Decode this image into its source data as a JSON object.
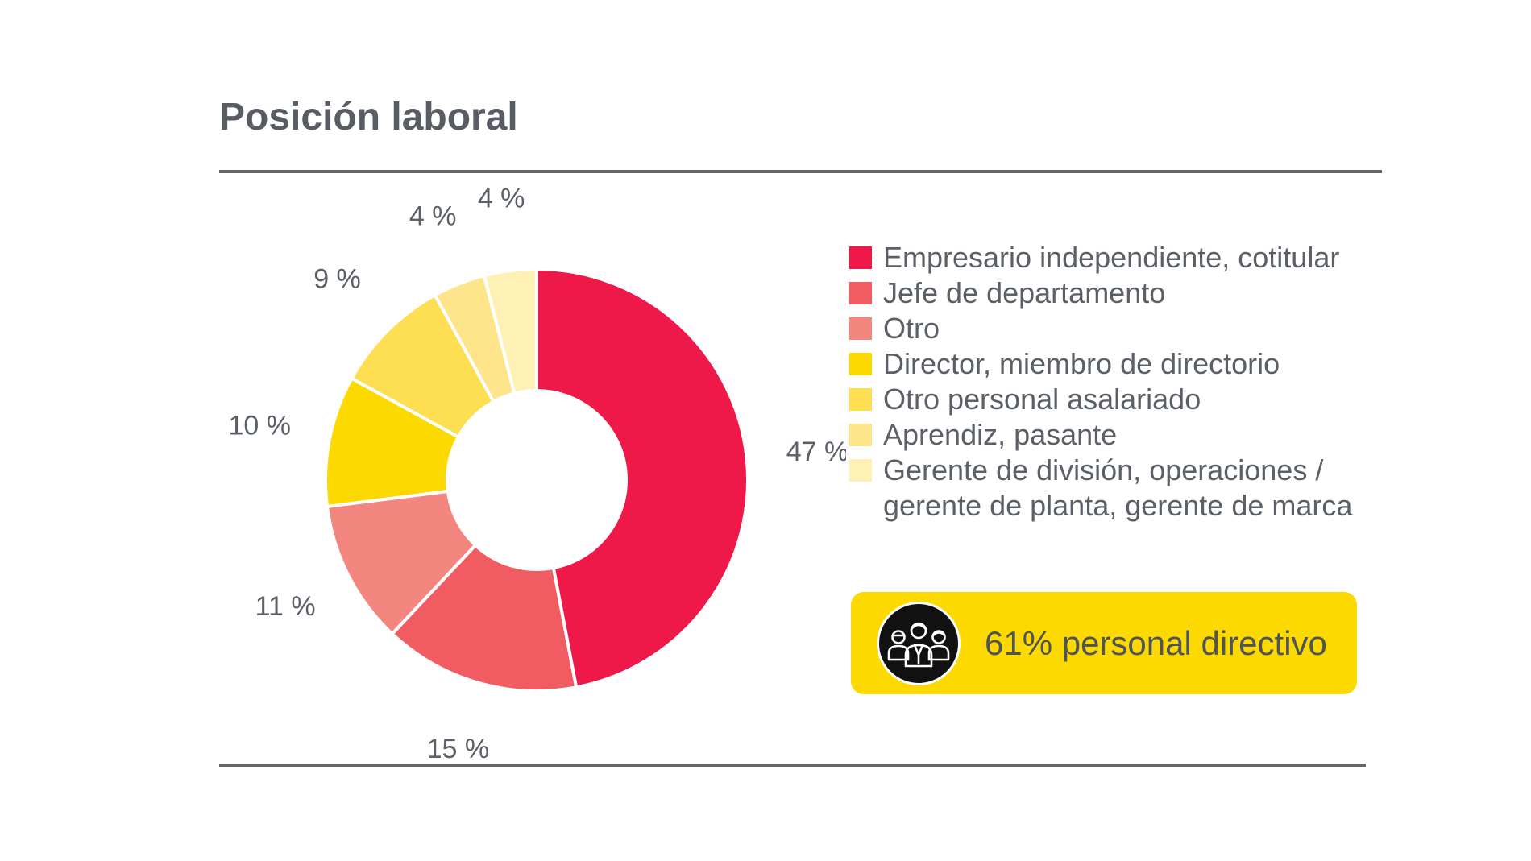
{
  "title": "Posición laboral",
  "chart_data": {
    "type": "pie",
    "donut": true,
    "title": "Posición laboral",
    "legend_position": "right",
    "categories": [
      "Empresario independiente, cotitular",
      "Jefe de departamento",
      "Otro",
      "Director, miembro de directorio",
      "Otro personal asalariado",
      "Aprendiz, pasante",
      "Gerente de división, operaciones / gerente de planta, gerente de marca"
    ],
    "values": [
      47,
      15,
      11,
      10,
      9,
      4,
      4
    ],
    "value_labels": [
      "47 %",
      "15 %",
      "11 %",
      "10 %",
      "9 %",
      "4 %",
      "4 %"
    ],
    "colors": [
      "#ee1948",
      "#f15b62",
      "#f3867e",
      "#fcd900",
      "#fede53",
      "#fee48a",
      "#fff0b3"
    ]
  },
  "legend": {
    "items": [
      {
        "lines": [
          "Empresario independiente, cotitular"
        ]
      },
      {
        "lines": [
          "Jefe de departamento"
        ]
      },
      {
        "lines": [
          "Otro"
        ]
      },
      {
        "lines": [
          "Director, miembro de directorio"
        ]
      },
      {
        "lines": [
          "Otro personal asalariado"
        ]
      },
      {
        "lines": [
          "Aprendiz, pasante"
        ]
      },
      {
        "lines": [
          "Gerente de división, operaciones /",
          "gerente de planta, gerente de marca"
        ]
      }
    ]
  },
  "callout": {
    "text": "61% personal directivo",
    "icon": "management-team-icon",
    "color": "#fcd900"
  }
}
